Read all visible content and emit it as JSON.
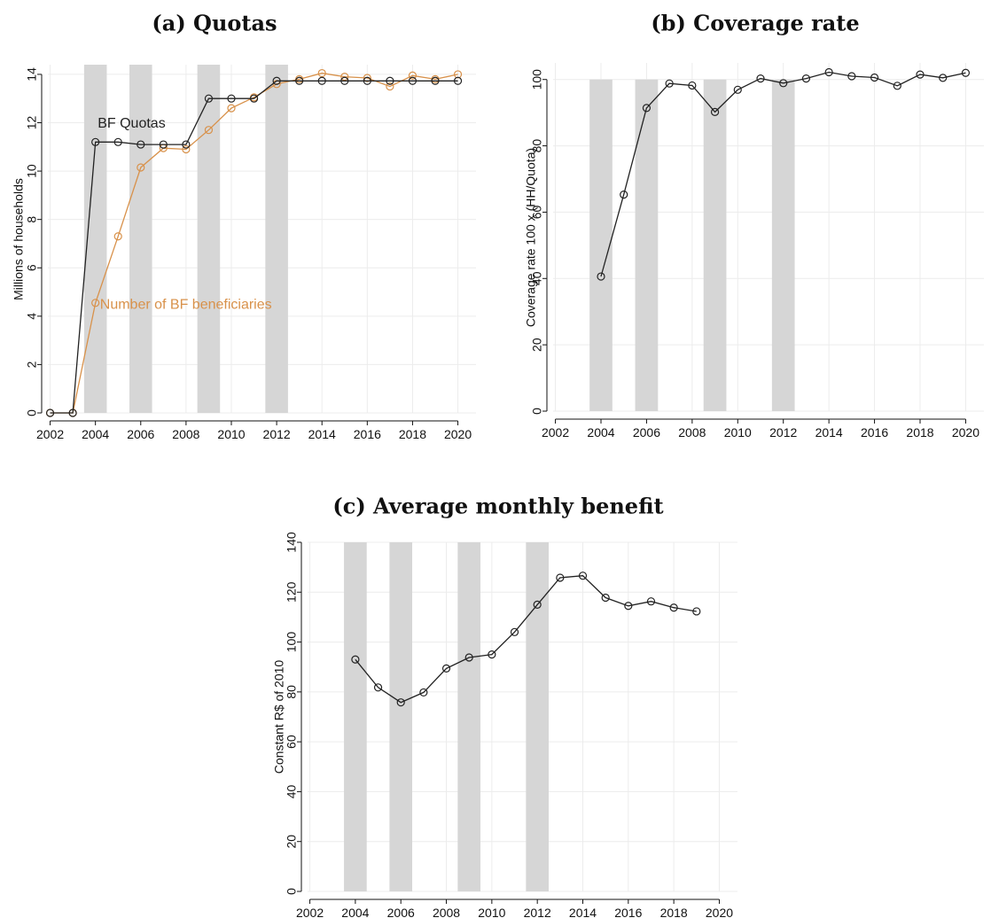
{
  "colors": {
    "black_series": "#222222",
    "orange_series": "#d8914a",
    "shade": "#d6d6d6"
  },
  "chart_data": [
    {
      "id": "quotas",
      "type": "line",
      "title": "(a) Quotas",
      "ylabel": "Millions of households",
      "xlabel": "",
      "xlim": [
        2001.9,
        2020.8
      ],
      "ylim": [
        0,
        14.4
      ],
      "xticks": [
        2002,
        2004,
        2006,
        2008,
        2010,
        2012,
        2014,
        2016,
        2018,
        2020
      ],
      "yticks": [
        0,
        2,
        4,
        6,
        8,
        10,
        12,
        14
      ],
      "grid": true,
      "shaded_periods": [
        [
          2003.5,
          2004.5
        ],
        [
          2005.5,
          2006.5
        ],
        [
          2008.5,
          2009.5
        ],
        [
          2011.5,
          2012.5
        ]
      ],
      "series": [
        {
          "name": "BF Quotas",
          "color": "#222222",
          "label_at": [
            2004.1,
            11.8
          ],
          "x": [
            2002,
            2003,
            2004,
            2005,
            2006,
            2007,
            2008,
            2009,
            2010,
            2011,
            2012,
            2013,
            2014,
            2015,
            2016,
            2017,
            2018,
            2019,
            2020
          ],
          "y": [
            0,
            0,
            11.2,
            11.2,
            11.1,
            11.1,
            11.1,
            13.0,
            13.0,
            13.0,
            13.73,
            13.73,
            13.73,
            13.73,
            13.73,
            13.73,
            13.73,
            13.73,
            13.73
          ]
        },
        {
          "name": "Number of BF beneficiaries",
          "color": "#d8914a",
          "label_at": [
            2004.2,
            4.3
          ],
          "x": [
            2002,
            2003,
            2004,
            2005,
            2006,
            2007,
            2008,
            2009,
            2010,
            2011,
            2012,
            2013,
            2014,
            2015,
            2016,
            2017,
            2018,
            2019,
            2020
          ],
          "y": [
            0,
            0,
            4.55,
            7.3,
            10.15,
            10.95,
            10.9,
            11.7,
            12.6,
            13.05,
            13.6,
            13.8,
            14.05,
            13.9,
            13.85,
            13.5,
            13.95,
            13.8,
            14.0
          ]
        }
      ]
    },
    {
      "id": "coverage",
      "type": "line",
      "title": "(b) Coverage rate",
      "ylabel": "Coverage rate 100 x (HH/Quota)",
      "xlabel": "",
      "xlim": [
        2001.9,
        2020.8
      ],
      "ylim": [
        0,
        105
      ],
      "xticks": [
        2002,
        2004,
        2006,
        2008,
        2010,
        2012,
        2014,
        2016,
        2018,
        2020
      ],
      "yticks": [
        0,
        20,
        40,
        60,
        80,
        100
      ],
      "grid": true,
      "shaded_periods": [
        [
          2003.5,
          2004.5
        ],
        [
          2005.5,
          2006.5
        ],
        [
          2008.5,
          2009.5
        ],
        [
          2011.5,
          2012.5
        ]
      ],
      "shade_top": 100,
      "series": [
        {
          "color": "#222222",
          "x": [
            2004,
            2005,
            2006,
            2007,
            2008,
            2009,
            2010,
            2011,
            2012,
            2013,
            2014,
            2015,
            2016,
            2017,
            2018,
            2019,
            2020
          ],
          "y": [
            40.6,
            65.3,
            91.4,
            98.8,
            98.2,
            90.2,
            96.9,
            100.3,
            98.9,
            100.3,
            102.2,
            101.0,
            100.6,
            98.1,
            101.5,
            100.5,
            102.0
          ]
        }
      ]
    },
    {
      "id": "benefit",
      "type": "line",
      "title": "(c) Average monthly benefit",
      "ylabel": "Constant R$ of 2010",
      "xlabel": "",
      "xlim": [
        2001.9,
        2020.8
      ],
      "ylim": [
        0,
        140
      ],
      "xticks": [
        2002,
        2004,
        2006,
        2008,
        2010,
        2012,
        2014,
        2016,
        2018,
        2020
      ],
      "yticks": [
        0,
        20,
        40,
        60,
        80,
        100,
        120,
        140
      ],
      "grid": true,
      "shaded_periods": [
        [
          2003.5,
          2004.5
        ],
        [
          2005.5,
          2006.5
        ],
        [
          2008.5,
          2009.5
        ],
        [
          2011.5,
          2012.5
        ]
      ],
      "series": [
        {
          "color": "#222222",
          "x": [
            2004,
            2005,
            2006,
            2007,
            2008,
            2009,
            2010,
            2011,
            2012,
            2013,
            2014,
            2015,
            2016,
            2017,
            2018,
            2019
          ],
          "y": [
            93.0,
            81.8,
            75.8,
            79.8,
            89.4,
            93.8,
            95.0,
            104.0,
            115.0,
            125.8,
            126.6,
            117.8,
            114.5,
            116.3,
            113.8,
            112.3
          ]
        }
      ]
    }
  ]
}
